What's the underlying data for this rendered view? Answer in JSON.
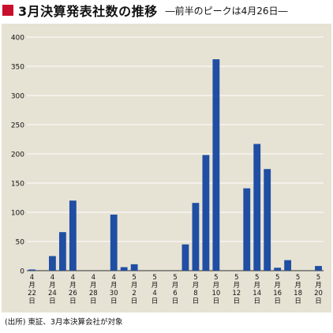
{
  "header": {
    "title": "3月決算発表社数の推移",
    "subtitle": "―前半のピークは4月26日―"
  },
  "source": "(出所) 東証、3月本決算会社が対象",
  "colors": {
    "bar": "#1f4ea3",
    "accent": "#c8102e",
    "panel": "#e6e2d4",
    "grid": "#ffffff"
  },
  "chart_data": {
    "type": "bar",
    "title": "3月決算発表社数の推移",
    "subtitle": "―前半のピークは4月26日―",
    "xlabel": "",
    "ylabel": "",
    "ylim": [
      0,
      400
    ],
    "yticks": [
      0,
      50,
      100,
      150,
      200,
      250,
      300,
      350,
      400
    ],
    "grid": true,
    "x_tick_labels": [
      [
        "4",
        "月",
        "22",
        "日"
      ],
      [
        "4",
        "月",
        "24",
        "日"
      ],
      [
        "4",
        "月",
        "26",
        "日"
      ],
      [
        "4",
        "月",
        "28",
        "日"
      ],
      [
        "4",
        "月",
        "30",
        "日"
      ],
      [
        "5",
        "月",
        "2",
        "日"
      ],
      [
        "5",
        "月",
        "4",
        "日"
      ],
      [
        "5",
        "月",
        "6",
        "日"
      ],
      [
        "5",
        "月",
        "8",
        "日"
      ],
      [
        "5",
        "月",
        "10",
        "日"
      ],
      [
        "5",
        "月",
        "12",
        "日"
      ],
      [
        "5",
        "月",
        "14",
        "日"
      ],
      [
        "5",
        "月",
        "16",
        "日"
      ],
      [
        "5",
        "月",
        "18",
        "日"
      ],
      [
        "5",
        "月",
        "20",
        "日"
      ]
    ],
    "categories": [
      "4/22",
      "4/23",
      "4/24",
      "4/25",
      "4/26",
      "4/27",
      "4/28",
      "4/29",
      "4/30",
      "5/1",
      "5/2",
      "5/3",
      "5/4",
      "5/5",
      "5/6",
      "5/7",
      "5/8",
      "5/9",
      "5/10",
      "5/11",
      "5/12",
      "5/13",
      "5/14",
      "5/15",
      "5/16",
      "5/17",
      "5/18",
      "5/19",
      "5/20"
    ],
    "values": [
      2,
      0,
      25,
      66,
      120,
      0,
      0,
      0,
      96,
      6,
      11,
      0,
      0,
      0,
      0,
      45,
      116,
      198,
      362,
      0,
      0,
      141,
      217,
      174,
      5,
      18,
      0,
      0,
      8
    ]
  }
}
